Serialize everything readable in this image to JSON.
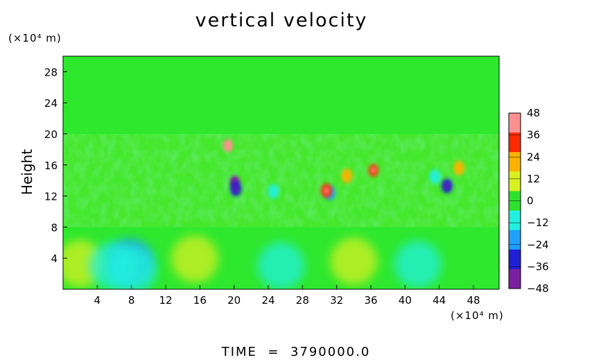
{
  "figure": {
    "time_label": "TIME",
    "time_value": "3790000.0",
    "x_unit": "(×10⁴ m)",
    "y_unit": "(×10⁴ m)"
  },
  "chart_data": {
    "type": "heatmap",
    "title": "vertical velocity",
    "xlabel": "",
    "ylabel": "Height",
    "xlim": [
      0,
      51
    ],
    "ylim": [
      0,
      30
    ],
    "x_ticks": [
      4,
      8,
      12,
      16,
      20,
      24,
      28,
      32,
      36,
      40,
      44,
      48
    ],
    "y_ticks": [
      4,
      8,
      12,
      16,
      20,
      24,
      28
    ],
    "colorbar": {
      "ticks": [
        48,
        36,
        24,
        12,
        0,
        -12,
        -24,
        -36,
        -48
      ],
      "range": [
        -48,
        48
      ],
      "colors": [
        "#7a1fa2",
        "#1f1fd8",
        "#1fa0ff",
        "#22f0e0",
        "#2de22d",
        "#d8f020",
        "#ffb300",
        "#ff2a00",
        "#ff9090"
      ]
    },
    "features": [
      {
        "x": 20.1,
        "y": 13.8,
        "value": -45
      },
      {
        "x": 20.2,
        "y": 12.9,
        "value": -30
      },
      {
        "x": 44.9,
        "y": 13.3,
        "value": -30
      },
      {
        "x": 7.8,
        "y": 3.5,
        "value": -24
      },
      {
        "x": 31.2,
        "y": 12.4,
        "value": -20
      },
      {
        "x": 24.6,
        "y": 12.6,
        "value": -10
      },
      {
        "x": 43.5,
        "y": 14.5,
        "value": -14
      },
      {
        "x": 19.3,
        "y": 18.5,
        "value": 38
      },
      {
        "x": 30.8,
        "y": 12.7,
        "value": 30
      },
      {
        "x": 36.3,
        "y": 15.3,
        "value": 32
      },
      {
        "x": 46.3,
        "y": 15.6,
        "value": 26
      },
      {
        "x": 33.2,
        "y": 14.6,
        "value": 22
      },
      {
        "x": 15.4,
        "y": 3.9,
        "value": 14
      },
      {
        "x": 34.0,
        "y": 3.6,
        "value": 15
      },
      {
        "x": 2.0,
        "y": 3.3,
        "value": 12
      },
      {
        "x": 5.8,
        "y": 3.0,
        "value": -12
      },
      {
        "x": 8.2,
        "y": 2.5,
        "value": -8
      },
      {
        "x": 25.5,
        "y": 3.0,
        "value": -10
      },
      {
        "x": 41.5,
        "y": 3.2,
        "value": -10
      }
    ]
  }
}
